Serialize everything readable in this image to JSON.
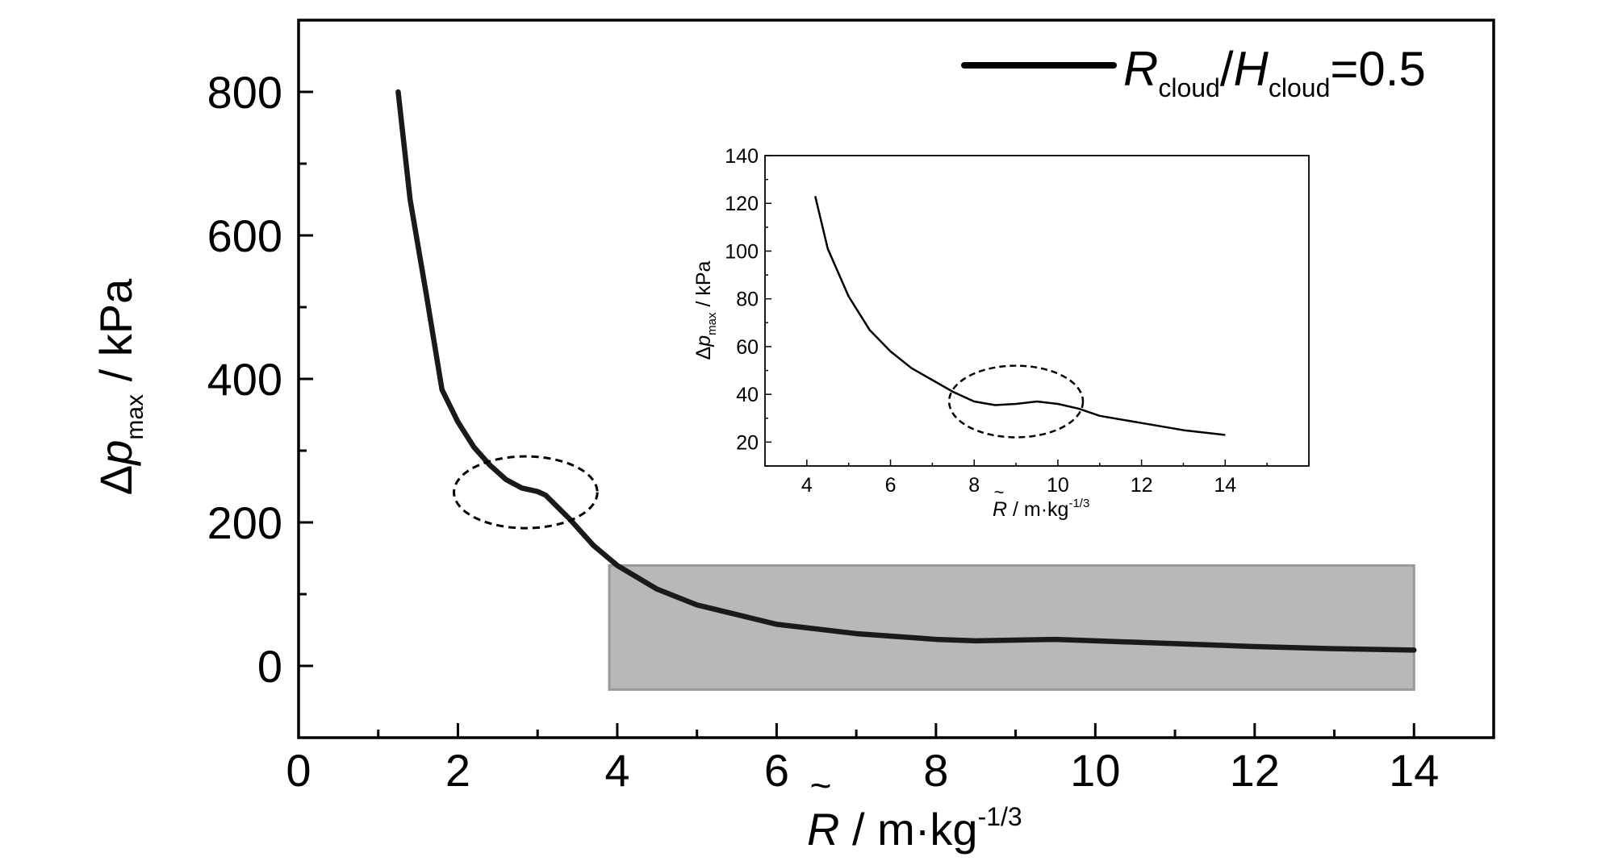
{
  "chart_data": [
    {
      "type": "line",
      "role": "main",
      "x_label": {
        "symbol": "R",
        "rest": "/ m·kg",
        "exp": "-1/3"
      },
      "y_label": {
        "delta": "Δ",
        "symbol": "p",
        "sub": "max",
        "rest": "/ kPa"
      },
      "xlim": [
        0,
        15
      ],
      "ylim": [
        -100,
        900
      ],
      "x_ticks": [
        "0",
        "2",
        "4",
        "6",
        "8",
        "10",
        "12",
        "14"
      ],
      "x_tick_values": [
        0,
        2,
        4,
        6,
        8,
        10,
        12,
        14
      ],
      "y_ticks": [
        "0",
        "200",
        "400",
        "600",
        "800"
      ],
      "y_tick_values": [
        0,
        200,
        400,
        600,
        800
      ],
      "legend": {
        "R": "R",
        "R_sub": "cloud",
        "slash": "/",
        "H": "H",
        "H_sub": "cloud",
        "value": "=0.5"
      },
      "series": [
        {
          "name": "Rcloud/Hcloud=0.5",
          "color": "#1a1a1a",
          "x": [
            1.25,
            1.4,
            1.6,
            1.8,
            2.0,
            2.2,
            2.4,
            2.6,
            2.8,
            3.0,
            3.1,
            3.4,
            3.7,
            4.0,
            4.5,
            5.0,
            6.0,
            7.0,
            8.0,
            8.5,
            9.0,
            9.5,
            10.0,
            11.0,
            12.0,
            13.0,
            14.0
          ],
          "y": [
            800,
            650,
            520,
            385,
            340,
            305,
            280,
            260,
            248,
            243,
            238,
            205,
            168,
            140,
            107,
            85,
            58,
            45,
            37,
            35,
            36,
            37,
            35,
            31,
            27,
            24,
            22
          ]
        }
      ],
      "highlight_region": {
        "x": [
          3.9,
          14.0
        ],
        "y": [
          -33,
          140
        ],
        "color": "#b8b8b8"
      },
      "annotation_ellipse": {
        "cx": 2.85,
        "cy": 242,
        "rx": 0.9,
        "ry": 50
      }
    },
    {
      "type": "line",
      "role": "inset",
      "x_label": {
        "symbol": "R",
        "rest": "/ m·kg",
        "exp": "-1/3"
      },
      "y_label": {
        "delta": "Δ",
        "symbol": "p",
        "sub": "max",
        "rest": "/ kPa"
      },
      "xlim": [
        3,
        16
      ],
      "ylim": [
        10,
        140
      ],
      "x_ticks": [
        "4",
        "6",
        "8",
        "10",
        "12",
        "14"
      ],
      "x_tick_values": [
        4,
        6,
        8,
        10,
        12,
        14
      ],
      "y_ticks": [
        "20",
        "40",
        "60",
        "80",
        "100",
        "120",
        "140"
      ],
      "y_tick_values": [
        20,
        40,
        60,
        80,
        100,
        120,
        140
      ],
      "series": [
        {
          "name": "inset",
          "color": "#000000",
          "x": [
            4.2,
            4.5,
            5.0,
            5.5,
            6.0,
            6.5,
            7.0,
            7.5,
            8.0,
            8.5,
            9.0,
            9.5,
            10.0,
            10.5,
            11.0,
            12.0,
            13.0,
            14.0
          ],
          "y": [
            123,
            101,
            81,
            67,
            58,
            51,
            46,
            41,
            37,
            35.5,
            36,
            37,
            36,
            34,
            31,
            28,
            25,
            23
          ]
        }
      ],
      "annotation_ellipse": {
        "cx": 9.0,
        "cy": 37,
        "rx": 1.6,
        "ry": 15
      }
    }
  ]
}
